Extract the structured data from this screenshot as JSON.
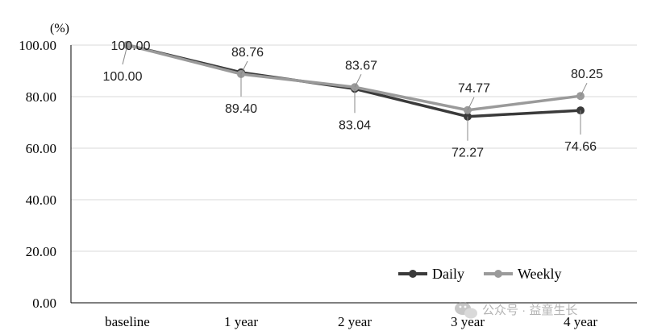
{
  "chart_data": {
    "type": "line",
    "unit_label": "(%)",
    "categories": [
      "baseline",
      "1 year",
      "2 year",
      "3 year",
      "4 year"
    ],
    "ylim": [
      0,
      100
    ],
    "yticks": [
      0,
      20,
      40,
      60,
      80,
      100
    ],
    "ytick_labels": [
      "0.00",
      "20.00",
      "40.00",
      "60.00",
      "80.00",
      "100.00"
    ],
    "grid": true,
    "legend_position": "bottom-right",
    "series": [
      {
        "name": "Daily",
        "color": "#3a3a3a",
        "values": [
          100.0,
          89.4,
          83.04,
          72.27,
          74.66
        ],
        "labels": [
          "100.00",
          "89.40",
          "83.04",
          "72.27",
          "74.66"
        ],
        "label_side": [
          "below",
          "below",
          "below",
          "below",
          "below"
        ]
      },
      {
        "name": "Weekly",
        "color": "#9a9a9a",
        "values": [
          100.0,
          88.76,
          83.67,
          74.77,
          80.25
        ],
        "labels": [
          "100.00",
          "88.76",
          "83.67",
          "74.77",
          "80.25"
        ],
        "label_side": [
          "above",
          "above",
          "above",
          "above",
          "above"
        ]
      }
    ]
  },
  "watermark": {
    "text": "公众号 · 益童生长",
    "icon": "wechat-icon"
  }
}
